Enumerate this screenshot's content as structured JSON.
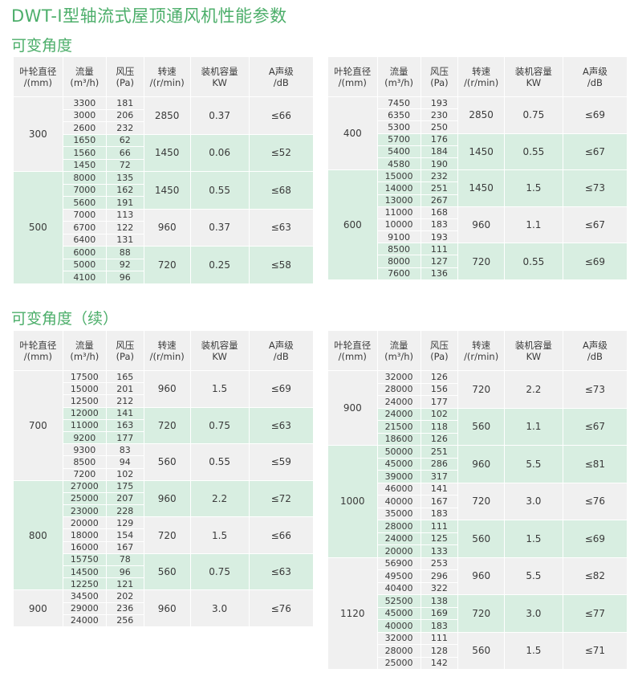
{
  "page_title": "DWT-I型轴流式屋顶通风机性能参数",
  "section1_title": "可变角度",
  "section2_title": "可变角度（续）",
  "header": {
    "diameter": "叶轮直径",
    "diameter_unit": "/(mm)",
    "flow": "流量",
    "flow_unit": "(m³/h)",
    "pressure": "风压",
    "pressure_unit": "(Pa)",
    "speed": "转速",
    "speed_unit": "/(r/min)",
    "power": "装机容量",
    "power_unit": "KW",
    "noise": "A声级",
    "noise_unit": "/dB"
  },
  "tables": [
    {
      "id": "t1",
      "diameters": [
        {
          "diameter": "300",
          "groups": [
            {
              "speed": "2850",
              "power": "0.37",
              "noise": "≤66",
              "rows": [
                [
                  "3300",
                  "181"
                ],
                [
                  "3000",
                  "206"
                ],
                [
                  "2600",
                  "232"
                ]
              ]
            },
            {
              "speed": "1450",
              "power": "0.06",
              "noise": "≤52",
              "rows": [
                [
                  "1650",
                  "62"
                ],
                [
                  "1560",
                  "66"
                ],
                [
                  "1450",
                  "72"
                ]
              ]
            }
          ]
        },
        {
          "diameter": "500",
          "groups": [
            {
              "speed": "1450",
              "power": "0.55",
              "noise": "≤68",
              "rows": [
                [
                  "8000",
                  "135"
                ],
                [
                  "7000",
                  "162"
                ],
                [
                  "5600",
                  "191"
                ]
              ]
            },
            {
              "speed": "960",
              "power": "0.37",
              "noise": "≤63",
              "rows": [
                [
                  "7000",
                  "113"
                ],
                [
                  "6700",
                  "122"
                ],
                [
                  "6400",
                  "131"
                ]
              ]
            },
            {
              "speed": "720",
              "power": "0.25",
              "noise": "≤58",
              "rows": [
                [
                  "6000",
                  "88"
                ],
                [
                  "5000",
                  "92"
                ],
                [
                  "4100",
                  "96"
                ]
              ]
            }
          ]
        }
      ]
    },
    {
      "id": "t2",
      "diameters": [
        {
          "diameter": "400",
          "groups": [
            {
              "speed": "2850",
              "power": "0.75",
              "noise": "≤69",
              "rows": [
                [
                  "7450",
                  "193"
                ],
                [
                  "6350",
                  "230"
                ],
                [
                  "5300",
                  "250"
                ]
              ]
            },
            {
              "speed": "1450",
              "power": "0.55",
              "noise": "≤67",
              "rows": [
                [
                  "5700",
                  "176"
                ],
                [
                  "5400",
                  "184"
                ],
                [
                  "4580",
                  "190"
                ]
              ]
            }
          ]
        },
        {
          "diameter": "600",
          "groups": [
            {
              "speed": "1450",
              "power": "1.5",
              "noise": "≤73",
              "rows": [
                [
                  "15000",
                  "232"
                ],
                [
                  "14000",
                  "251"
                ],
                [
                  "13000",
                  "267"
                ]
              ]
            },
            {
              "speed": "960",
              "power": "1.1",
              "noise": "≤67",
              "rows": [
                [
                  "11000",
                  "168"
                ],
                [
                  "10000",
                  "183"
                ],
                [
                  "9100",
                  "193"
                ]
              ]
            },
            {
              "speed": "720",
              "power": "0.55",
              "noise": "≤69",
              "rows": [
                [
                  "8500",
                  "111"
                ],
                [
                  "8000",
                  "127"
                ],
                [
                  "7600",
                  "136"
                ]
              ]
            }
          ]
        }
      ]
    },
    {
      "id": "t3",
      "diameters": [
        {
          "diameter": "700",
          "groups": [
            {
              "speed": "960",
              "power": "1.5",
              "noise": "≤69",
              "rows": [
                [
                  "17500",
                  "165"
                ],
                [
                  "15000",
                  "201"
                ],
                [
                  "12500",
                  "212"
                ]
              ]
            },
            {
              "speed": "720",
              "power": "0.75",
              "noise": "≤63",
              "rows": [
                [
                  "12000",
                  "141"
                ],
                [
                  "11000",
                  "163"
                ],
                [
                  "9200",
                  "177"
                ]
              ]
            },
            {
              "speed": "560",
              "power": "0.55",
              "noise": "≤59",
              "rows": [
                [
                  "9300",
                  "83"
                ],
                [
                  "8500",
                  "94"
                ],
                [
                  "7200",
                  "102"
                ]
              ]
            }
          ]
        },
        {
          "diameter": "800",
          "groups": [
            {
              "speed": "960",
              "power": "2.2",
              "noise": "≤72",
              "rows": [
                [
                  "27000",
                  "175"
                ],
                [
                  "25000",
                  "207"
                ],
                [
                  "23000",
                  "228"
                ]
              ]
            },
            {
              "speed": "720",
              "power": "1.5",
              "noise": "≤66",
              "rows": [
                [
                  "20000",
                  "129"
                ],
                [
                  "18000",
                  "154"
                ],
                [
                  "16000",
                  "167"
                ]
              ]
            },
            {
              "speed": "560",
              "power": "0.75",
              "noise": "≤63",
              "rows": [
                [
                  "15750",
                  "78"
                ],
                [
                  "14500",
                  "96"
                ],
                [
                  "12250",
                  "121"
                ]
              ]
            }
          ]
        },
        {
          "diameter": "900",
          "groups": [
            {
              "speed": "960",
              "power": "3.0",
              "noise": "≤76",
              "rows": [
                [
                  "34500",
                  "202"
                ],
                [
                  "29000",
                  "236"
                ],
                [
                  "24000",
                  "256"
                ]
              ]
            }
          ]
        }
      ]
    },
    {
      "id": "t4",
      "diameters": [
        {
          "diameter": "900",
          "groups": [
            {
              "speed": "720",
              "power": "2.2",
              "noise": "≤73",
              "rows": [
                [
                  "32000",
                  "126"
                ],
                [
                  "28000",
                  "156"
                ],
                [
                  "24000",
                  "177"
                ]
              ]
            },
            {
              "speed": "560",
              "power": "1.1",
              "noise": "≤67",
              "rows": [
                [
                  "24000",
                  "102"
                ],
                [
                  "21500",
                  "118"
                ],
                [
                  "18600",
                  "126"
                ]
              ]
            }
          ]
        },
        {
          "diameter": "1000",
          "groups": [
            {
              "speed": "960",
              "power": "5.5",
              "noise": "≤81",
              "rows": [
                [
                  "50000",
                  "251"
                ],
                [
                  "45000",
                  "286"
                ],
                [
                  "39000",
                  "317"
                ]
              ]
            },
            {
              "speed": "720",
              "power": "3.0",
              "noise": "≤76",
              "rows": [
                [
                  "46000",
                  "141"
                ],
                [
                  "40000",
                  "167"
                ],
                [
                  "35000",
                  "183"
                ]
              ]
            },
            {
              "speed": "560",
              "power": "1.5",
              "noise": "≤69",
              "rows": [
                [
                  "28000",
                  "111"
                ],
                [
                  "24000",
                  "125"
                ],
                [
                  "20000",
                  "133"
                ]
              ]
            }
          ]
        },
        {
          "diameter": "1120",
          "groups": [
            {
              "speed": "960",
              "power": "5.5",
              "noise": "≤82",
              "rows": [
                [
                  "56900",
                  "253"
                ],
                [
                  "49500",
                  "296"
                ],
                [
                  "40400",
                  "322"
                ]
              ]
            },
            {
              "speed": "720",
              "power": "3.0",
              "noise": "≤77",
              "rows": [
                [
                  "52500",
                  "138"
                ],
                [
                  "45000",
                  "169"
                ],
                [
                  "40000",
                  "183"
                ]
              ]
            },
            {
              "speed": "560",
              "power": "1.5",
              "noise": "≤71",
              "rows": [
                [
                  "32000",
                  "111"
                ],
                [
                  "28000",
                  "128"
                ],
                [
                  "25000",
                  "142"
                ]
              ]
            }
          ]
        }
      ]
    }
  ]
}
